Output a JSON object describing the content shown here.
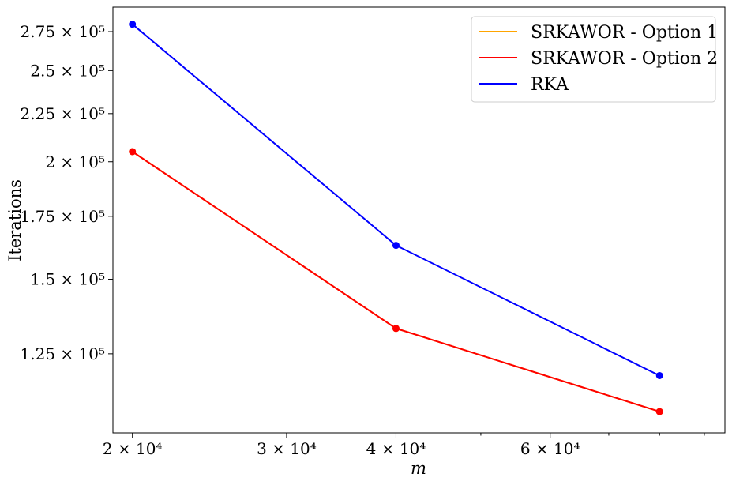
{
  "chart_data": {
    "type": "line",
    "xscale": "log",
    "yscale": "log",
    "xlabel": "m",
    "ylabel": "Iterations",
    "xlim": [
      19000,
      95000
    ],
    "ylim": [
      103000,
      292000
    ],
    "grid": false,
    "legend_position": "top-right",
    "x": [
      20000,
      40000,
      80000
    ],
    "series": [
      {
        "name": "SRKAWOR - Option 1",
        "color": "#FFA500",
        "values": [
          205000,
          133000,
          108500
        ]
      },
      {
        "name": "SRKAWOR - Option 2",
        "color": "#FF0000",
        "values": [
          205000,
          133000,
          108500
        ]
      },
      {
        "name": "RKA",
        "color": "#0000FF",
        "values": [
          280000,
          163000,
          118500
        ]
      }
    ],
    "x_ticks": [
      {
        "value": 20000,
        "label": "2 × 10⁴"
      },
      {
        "value": 30000,
        "label": "3 × 10⁴"
      },
      {
        "value": 40000,
        "label": "4 × 10⁴"
      },
      {
        "value": 60000,
        "label": "6 × 10⁴"
      }
    ],
    "x_minor_ticks": [
      50000,
      70000,
      80000,
      90000
    ],
    "y_ticks": [
      {
        "value": 125000,
        "label": "1.25 × 10⁵"
      },
      {
        "value": 150000,
        "label": "1.5 × 10⁵"
      },
      {
        "value": 175000,
        "label": "1.75 × 10⁵"
      },
      {
        "value": 200000,
        "label": "2 × 10⁵"
      },
      {
        "value": 225000,
        "label": "2.25 × 10⁵"
      },
      {
        "value": 250000,
        "label": "2.5 × 10⁵"
      },
      {
        "value": 275000,
        "label": "2.75 × 10⁵"
      }
    ]
  }
}
